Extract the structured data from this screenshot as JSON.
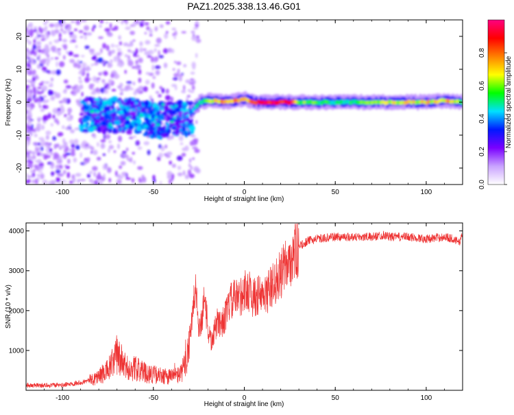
{
  "title": "PAZ1.2025.338.13.46.G01",
  "chart_data": [
    {
      "type": "heatmap",
      "xlabel": "Height of straight line (km)",
      "ylabel": "Frequency (Hz)",
      "xlim": [
        -120,
        120
      ],
      "ylim": [
        -25,
        25
      ],
      "xticks": [
        -100,
        -50,
        0,
        50,
        100
      ],
      "yticks": [
        -20,
        -10,
        0,
        10,
        20
      ],
      "colorbar": {
        "label": "Normalized spectral amplitude",
        "range": [
          0,
          1
        ],
        "ticks": [
          0.0,
          0.2,
          0.4,
          0.6,
          0.8
        ],
        "colors": [
          "#ffffff",
          "#c9a3ff",
          "#7a00ff",
          "#0018ff",
          "#00e0ff",
          "#00ff00",
          "#ffff00",
          "#ff8000",
          "#ff0000",
          "#ff0080"
        ]
      },
      "ridge": [
        {
          "x": -30,
          "y": -3,
          "amp": 0.4
        },
        {
          "x": -25,
          "y": 0,
          "amp": 0.5
        },
        {
          "x": -20,
          "y": 0.5,
          "amp": 0.7
        },
        {
          "x": -10,
          "y": 0,
          "amp": 0.8
        },
        {
          "x": 0,
          "y": 1,
          "amp": 0.75
        },
        {
          "x": 5,
          "y": 0,
          "amp": 0.85
        },
        {
          "x": 10,
          "y": 0,
          "amp": 0.9
        },
        {
          "x": 15,
          "y": 0,
          "amp": 0.92
        },
        {
          "x": 20,
          "y": 0,
          "amp": 0.95
        },
        {
          "x": 25,
          "y": 0,
          "amp": 0.95
        },
        {
          "x": 30,
          "y": 0,
          "amp": 0.6
        },
        {
          "x": 50,
          "y": 0,
          "amp": 0.5
        },
        {
          "x": 75,
          "y": 0,
          "amp": 0.65
        },
        {
          "x": 100,
          "y": 0,
          "amp": 0.7
        },
        {
          "x": 110,
          "y": 0.5,
          "amp": 0.75
        },
        {
          "x": 120,
          "y": 0,
          "amp": 0.6
        }
      ]
    },
    {
      "type": "line",
      "xlabel": "Height of straight line (km)",
      "ylabel": "SNR (10 * v/v)",
      "xlim": [
        -120,
        120
      ],
      "ylim": [
        0,
        4200
      ],
      "xticks": [
        -100,
        -50,
        0,
        50,
        100
      ],
      "yticks": [
        1000,
        2000,
        3000,
        4000
      ],
      "color": "#ee3333",
      "x": [
        -120,
        -100,
        -90,
        -85,
        -80,
        -75,
        -72,
        -70,
        -65,
        -60,
        -55,
        -50,
        -45,
        -40,
        -35,
        -32,
        -30,
        -28,
        -27,
        -25,
        -23,
        -22,
        -20,
        -18,
        -15,
        -12,
        -10,
        -8,
        -5,
        -3,
        0,
        3,
        5,
        8,
        10,
        15,
        20,
        25,
        30,
        35,
        40,
        50,
        60,
        70,
        77,
        80,
        90,
        100,
        110,
        115,
        118,
        120
      ],
      "y": [
        120,
        130,
        200,
        250,
        350,
        500,
        700,
        900,
        550,
        550,
        450,
        400,
        350,
        350,
        400,
        700,
        1400,
        2000,
        2600,
        1600,
        1800,
        2500,
        1500,
        1200,
        1700,
        1700,
        1900,
        2200,
        2300,
        2300,
        2500,
        2500,
        2300,
        2400,
        2300,
        2600,
        2900,
        3300,
        3600,
        3750,
        3800,
        3850,
        3850,
        3850,
        3900,
        3850,
        3850,
        3800,
        3850,
        3800,
        3700,
        3900
      ]
    }
  ]
}
